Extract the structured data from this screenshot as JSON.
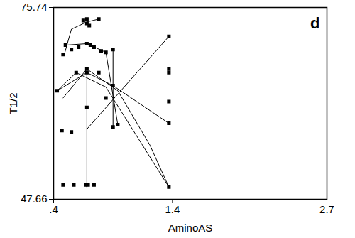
{
  "chart_data": {
    "type": "scatter",
    "color": "#000000",
    "marker": "square",
    "x_label": "AminoAS",
    "y_label": "T1/2",
    "annotation": "d",
    "xlim": [
      0.4,
      2.7
    ],
    "xticks": [
      {
        "value": 0.4,
        "label": ".4"
      },
      1.4,
      2.7
    ],
    "ylim": [
      47.66,
      75.74
    ],
    "yticks": [
      47.66,
      75.74
    ],
    "grid": false,
    "series": [
      {
        "type": "scatter",
        "marker": "square",
        "values": [
          [
            0.48,
            68.85
          ],
          [
            0.5,
            70.23
          ],
          [
            0.47,
            57.72
          ],
          [
            0.55,
            57.51
          ],
          [
            0.55,
            69.59
          ],
          [
            0.61,
            69.91
          ],
          [
            0.68,
            74.04
          ],
          [
            0.68,
            73.41
          ],
          [
            0.7,
            73.09
          ],
          [
            0.65,
            73.83
          ],
          [
            0.78,
            74.04
          ],
          [
            0.68,
            70.44
          ],
          [
            0.71,
            70.23
          ],
          [
            0.74,
            69.91
          ],
          [
            0.8,
            69.38
          ],
          [
            0.84,
            69.17
          ],
          [
            0.9,
            69.59
          ],
          [
            0.68,
            66.73
          ],
          [
            0.68,
            61.11
          ],
          [
            0.9,
            64.29
          ],
          [
            0.9,
            58.25
          ],
          [
            0.94,
            58.57
          ],
          [
            0.48,
            49.77
          ],
          [
            0.57,
            49.77
          ],
          [
            0.67,
            49.77
          ],
          [
            0.69,
            49.77
          ],
          [
            0.74,
            49.77
          ],
          [
            1.37,
            71.5
          ],
          [
            1.37,
            66.73
          ],
          [
            1.37,
            66.2
          ],
          [
            1.37,
            61.96
          ],
          [
            1.37,
            58.78
          ],
          [
            1.37,
            49.45
          ],
          [
            0.43,
            63.55
          ],
          [
            0.59,
            66.2
          ],
          [
            0.68,
            66.2
          ],
          [
            0.78,
            66.2
          ],
          [
            0.84,
            62.49
          ]
        ]
      },
      {
        "type": "line",
        "values": [
          [
            0.43,
            63.55
          ],
          [
            0.68,
            66.2
          ],
          [
            0.9,
            64.29
          ],
          [
            1.37,
            58.78
          ]
        ]
      },
      {
        "type": "line",
        "values": [
          [
            0.43,
            63.55
          ],
          [
            0.59,
            66.2
          ],
          [
            0.84,
            64.08
          ],
          [
            1.37,
            49.45
          ]
        ]
      },
      {
        "type": "line",
        "values": [
          [
            0.48,
            62.49
          ],
          [
            0.68,
            66.73
          ],
          [
            0.94,
            63.55
          ],
          [
            1.21,
            55.6
          ],
          [
            1.37,
            49.45
          ]
        ]
      },
      {
        "type": "line",
        "values": [
          [
            0.68,
            66.2
          ],
          [
            0.68,
            49.45
          ]
        ]
      },
      {
        "type": "line",
        "values": [
          [
            0.9,
            69.59
          ],
          [
            0.9,
            58.25
          ]
        ]
      },
      {
        "type": "line",
        "values": [
          [
            0.68,
            57.93
          ],
          [
            1.37,
            71.5
          ]
        ]
      },
      {
        "type": "line",
        "values": [
          [
            0.49,
            68.85
          ],
          [
            0.55,
            72.56
          ],
          [
            0.68,
            73.62
          ],
          [
            0.78,
            74.04
          ]
        ]
      },
      {
        "type": "line",
        "values": [
          [
            0.51,
            70.23
          ],
          [
            0.68,
            70.44
          ],
          [
            0.84,
            69.17
          ],
          [
            0.94,
            58.57
          ]
        ]
      }
    ]
  }
}
